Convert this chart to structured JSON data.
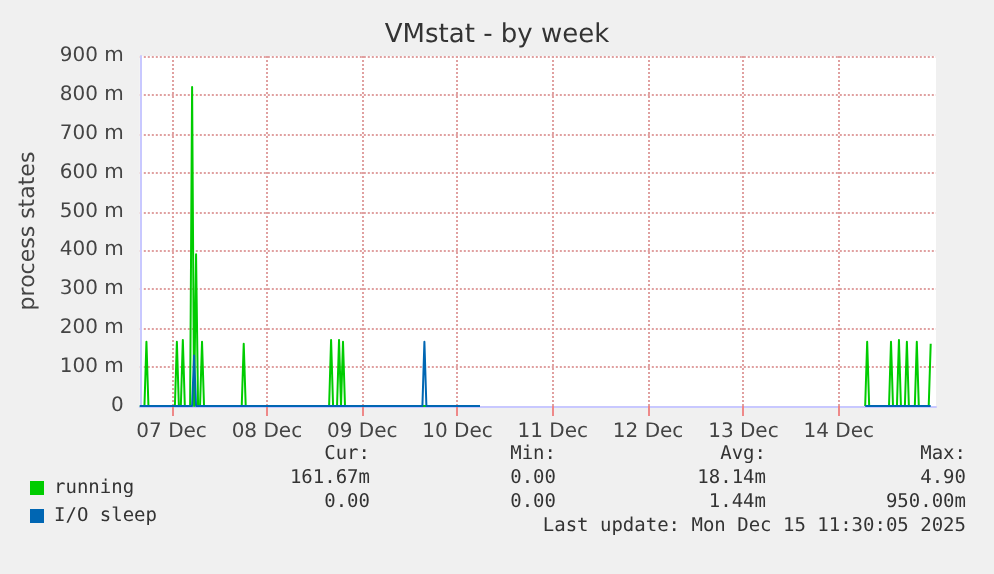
{
  "chart_data": {
    "type": "line",
    "title": "VMstat - by week",
    "ylabel": "process states",
    "xlim": [
      "2025-12-07T04:00",
      "2025-12-15T12:30"
    ],
    "xticks": [
      {
        "value": "2025-12-07T12:00",
        "label": "07 Dec"
      },
      {
        "value": "2025-12-08T12:00",
        "label": "08 Dec"
      },
      {
        "value": "2025-12-09T12:00",
        "label": "09 Dec"
      },
      {
        "value": "2025-12-10T12:00",
        "label": "10 Dec"
      },
      {
        "value": "2025-12-11T12:00",
        "label": "11 Dec"
      },
      {
        "value": "2025-12-12T12:00",
        "label": "12 Dec"
      },
      {
        "value": "2025-12-13T12:00",
        "label": "13 Dec"
      },
      {
        "value": "2025-12-14T12:00",
        "label": "14 Dec"
      }
    ],
    "ylim": [
      0,
      900
    ],
    "yticks": [
      0,
      {
        "value": 100,
        "label": "100 m"
      },
      {
        "value": 200,
        "label": "200 m"
      },
      {
        "value": 300,
        "label": "300 m"
      },
      {
        "value": 400,
        "label": "400 m"
      },
      {
        "value": 500,
        "label": "500 m"
      },
      {
        "value": 600,
        "label": "600 m"
      },
      {
        "value": 700,
        "label": "700 m"
      },
      {
        "value": 800,
        "label": "800 m"
      },
      {
        "value": 900,
        "label": "900 m"
      }
    ],
    "grid": true,
    "legend": "bottom left",
    "marker": "none",
    "line_style": "solid",
    "series": [
      {
        "name": "running",
        "color": "#00cc00",
        "x": [
          "2025-12-07T04:00",
          "2025-12-07T05:10",
          "2025-12-07T05:40",
          "2025-12-07T06:10",
          "2025-12-07T12:50",
          "2025-12-07T13:20",
          "2025-12-07T13:50",
          "2025-12-07T14:20",
          "2025-12-07T14:50",
          "2025-12-07T15:20",
          "2025-12-07T16:40",
          "2025-12-07T17:10",
          "2025-12-07T17:40",
          "2025-12-07T18:10",
          "2025-12-07T18:40",
          "2025-12-07T19:10",
          "2025-12-07T19:40",
          "2025-12-07T20:10",
          "2025-12-08T05:40",
          "2025-12-08T06:10",
          "2025-12-08T06:40",
          "2025-12-09T03:40",
          "2025-12-09T04:10",
          "2025-12-09T04:40",
          "2025-12-09T05:40",
          "2025-12-09T06:10",
          "2025-12-09T06:40",
          "2025-12-09T07:10",
          "2025-12-09T07:40",
          "2025-12-10T17:40",
          "2025-12-11T00:00",
          "2025-12-14T18:40",
          "2025-12-14T19:10",
          "2025-12-14T19:40",
          "2025-12-15T00:40",
          "2025-12-15T01:10",
          "2025-12-15T01:40",
          "2025-12-15T02:40",
          "2025-12-15T03:10",
          "2025-12-15T03:40",
          "2025-12-15T04:40",
          "2025-12-15T05:10",
          "2025-12-15T05:40",
          "2025-12-15T07:10",
          "2025-12-15T07:40",
          "2025-12-15T08:10",
          "2025-12-15T10:40",
          "2025-12-15T11:10"
        ],
        "values": [
          0,
          0,
          165,
          0,
          0,
          165,
          0,
          0,
          170,
          0,
          0,
          820,
          0,
          390,
          0,
          0,
          165,
          0,
          0,
          160,
          0,
          0,
          170,
          0,
          0,
          170,
          0,
          165,
          0,
          0,
          null,
          0,
          165,
          0,
          0,
          165,
          0,
          0,
          170,
          0,
          0,
          165,
          0,
          0,
          165,
          0,
          0,
          160
        ]
      },
      {
        "name": "I/O sleep",
        "color": "#0066b3",
        "x": [
          "2025-12-07T04:00",
          "2025-12-07T17:10",
          "2025-12-07T17:40",
          "2025-12-07T18:10",
          "2025-12-10T03:10",
          "2025-12-10T03:40",
          "2025-12-10T04:10",
          "2025-12-10T17:40",
          "2025-12-11T00:00",
          "2025-12-14T18:40",
          "2025-12-15T11:10"
        ],
        "values": [
          0,
          0,
          130,
          0,
          0,
          165,
          0,
          0,
          null,
          0,
          0
        ]
      }
    ],
    "annotations": [
      "Cur:",
      "Min:",
      "Avg:",
      "Max:",
      "161.67m",
      "0.00",
      "18.14m",
      "4.90",
      "0.00",
      "0.00",
      "1.44m",
      "950.00m",
      "Last update: Mon Dec 15 11:30:05 2025"
    ]
  }
}
